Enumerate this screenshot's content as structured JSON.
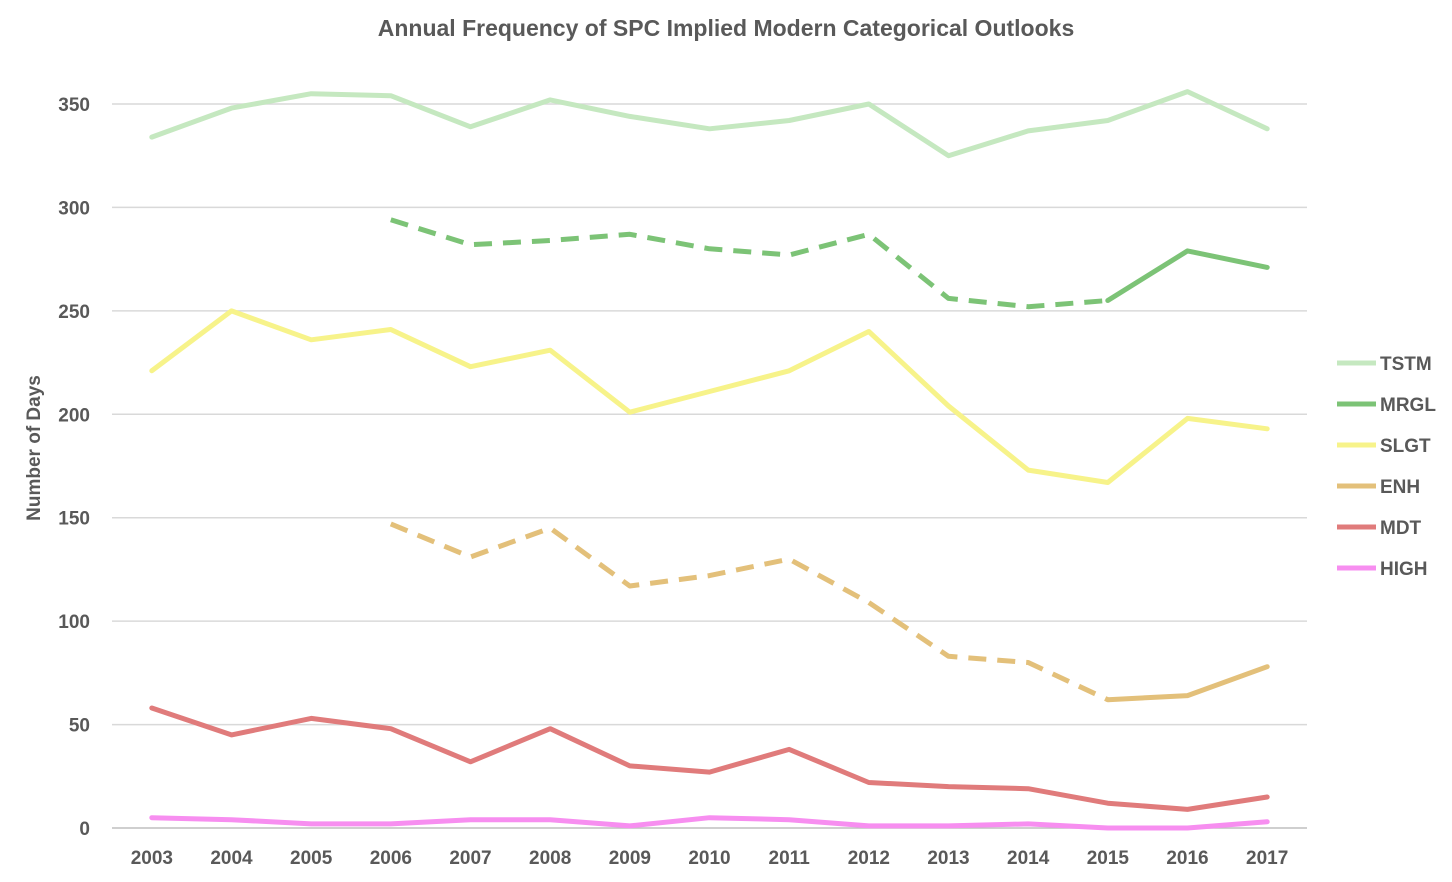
{
  "chart_data": {
    "type": "line",
    "title": "Annual Frequency of SPC Implied Modern Categorical Outlooks",
    "xlabel": "",
    "ylabel": "Number of Days",
    "ylim": [
      0,
      350
    ],
    "yticks": [
      0,
      50,
      100,
      150,
      200,
      250,
      300,
      350
    ],
    "grid": true,
    "legend_position": "right",
    "categories": [
      "2003",
      "2004",
      "2005",
      "2006",
      "2007",
      "2008",
      "2009",
      "2010",
      "2011",
      "2012",
      "2013",
      "2014",
      "2015",
      "2016",
      "2017"
    ],
    "series": [
      {
        "name": "TSTM",
        "color": "#c5e8c0",
        "values": [
          334,
          348,
          355,
          354,
          339,
          352,
          344,
          338,
          342,
          350,
          325,
          337,
          342,
          356,
          338
        ],
        "dashed_until": null
      },
      {
        "name": "MRGL",
        "color": "#7cc376",
        "values": [
          null,
          null,
          null,
          294,
          282,
          284,
          287,
          280,
          277,
          287,
          256,
          252,
          255,
          279,
          271
        ],
        "dashed_until": "2015"
      },
      {
        "name": "SLGT",
        "color": "#f7f38a",
        "values": [
          221,
          250,
          236,
          241,
          223,
          231,
          201,
          211,
          221,
          240,
          204,
          173,
          167,
          198,
          193
        ],
        "dashed_until": null
      },
      {
        "name": "ENH",
        "color": "#e3c07a",
        "values": [
          null,
          null,
          null,
          147,
          131,
          145,
          117,
          122,
          130,
          109,
          83,
          80,
          62,
          64,
          78
        ],
        "dashed_until": "2015"
      },
      {
        "name": "MDT",
        "color": "#e07b7b",
        "values": [
          58,
          45,
          53,
          48,
          32,
          48,
          30,
          27,
          38,
          22,
          20,
          19,
          12,
          9,
          15
        ],
        "dashed_until": null
      },
      {
        "name": "HIGH",
        "color": "#f78ef0",
        "values": [
          5,
          4,
          2,
          2,
          4,
          4,
          1,
          5,
          4,
          1,
          1,
          2,
          0,
          0,
          3
        ],
        "dashed_until": null
      }
    ]
  }
}
